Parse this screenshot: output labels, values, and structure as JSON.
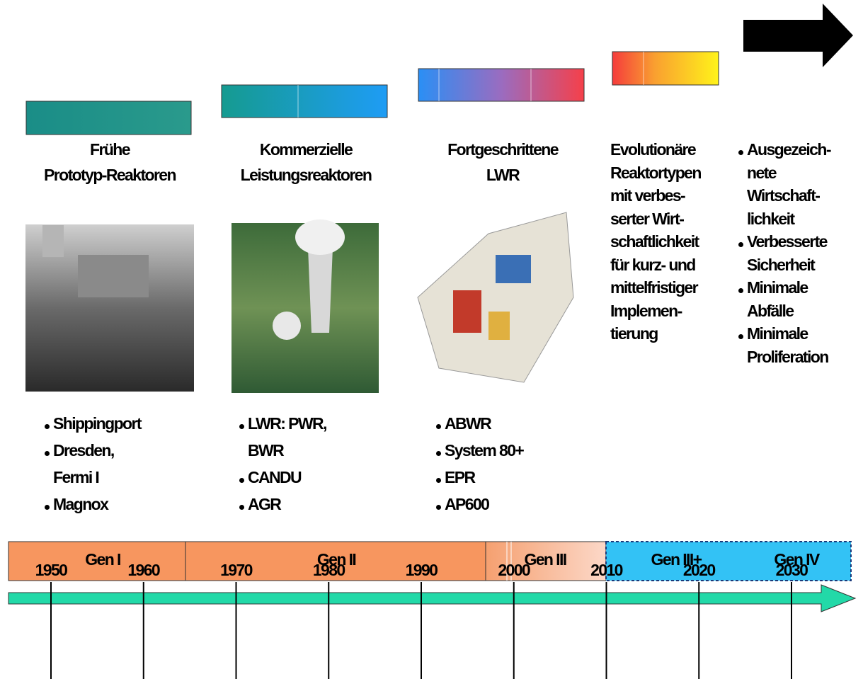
{
  "columns": [
    {
      "title": [
        "Frühe",
        "Prototyp-Reaktoren"
      ],
      "items": [
        [
          "Shippingport"
        ],
        [
          "Dresden,",
          "Fermi I"
        ],
        [
          "Magnox"
        ]
      ]
    },
    {
      "title": [
        "Kommerzielle",
        "Leistungsreaktoren"
      ],
      "items": [
        [
          "LWR: PWR,",
          "BWR"
        ],
        [
          "CANDU"
        ],
        [
          "AGR"
        ]
      ]
    },
    {
      "title": [
        "Fortgeschrittene",
        "LWR"
      ],
      "items": [
        [
          "ABWR"
        ],
        [
          "System 80+"
        ],
        [
          "EPR"
        ],
        [
          "AP600"
        ]
      ]
    },
    {
      "description": [
        "Evolutionäre",
        "Reaktortypen",
        "mit verbes-",
        "serter Wirt-",
        "schaftlichkeit",
        "für kurz- und",
        "mittelfristiger",
        "Implemen-",
        "tierung"
      ]
    },
    {
      "items": [
        [
          "Ausgezeich-",
          "nete",
          "Wirtschaft-",
          "lichkeit"
        ],
        [
          "Verbesserte",
          "Sicherheit"
        ],
        [
          "Minimale",
          "Abfälle"
        ],
        [
          "Minimale",
          "Proliferation"
        ]
      ]
    }
  ],
  "generations": [
    "Gen I",
    "Gen II",
    "Gen III",
    "Gen III+",
    "Gen IV"
  ],
  "years": [
    1950,
    1960,
    1970,
    1980,
    1990,
    2000,
    2010,
    2020,
    2030
  ]
}
